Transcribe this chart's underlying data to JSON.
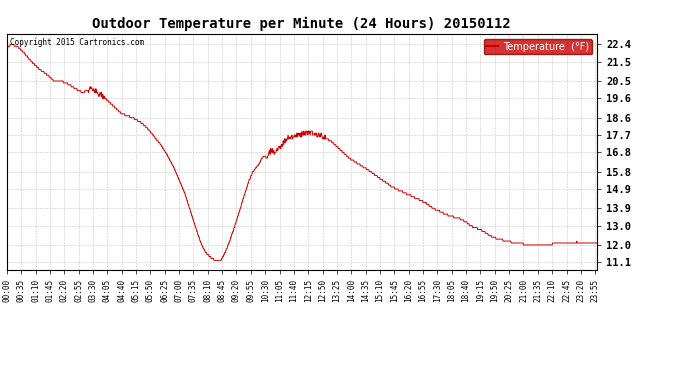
{
  "title": "Outdoor Temperature per Minute (24 Hours) 20150112",
  "copyright_text": "Copyright 2015 Cartronics.com",
  "legend_label": "Temperature  (°F)",
  "line_color": "#cc0000",
  "legend_bg": "#cc0000",
  "legend_text_color": "#ffffff",
  "background_color": "#ffffff",
  "grid_color": "#c0c0c0",
  "yticks": [
    11.1,
    12.0,
    13.0,
    13.9,
    14.9,
    15.8,
    16.8,
    17.7,
    18.6,
    19.6,
    20.5,
    21.5,
    22.4
  ],
  "ylim": [
    10.7,
    22.95
  ],
  "total_minutes": 1440,
  "figsize": [
    6.9,
    3.75
  ],
  "dpi": 100,
  "control_points": [
    [
      0,
      22.2
    ],
    [
      10,
      22.4
    ],
    [
      25,
      22.3
    ],
    [
      40,
      22.0
    ],
    [
      60,
      21.5
    ],
    [
      80,
      21.1
    ],
    [
      100,
      20.8
    ],
    [
      115,
      20.5
    ],
    [
      130,
      20.5
    ],
    [
      145,
      20.4
    ],
    [
      160,
      20.2
    ],
    [
      175,
      20.0
    ],
    [
      185,
      19.9
    ],
    [
      195,
      20.0
    ],
    [
      205,
      20.1
    ],
    [
      215,
      20.0
    ],
    [
      220,
      19.9
    ],
    [
      235,
      19.7
    ],
    [
      250,
      19.4
    ],
    [
      265,
      19.1
    ],
    [
      280,
      18.8
    ],
    [
      295,
      18.7
    ],
    [
      305,
      18.6
    ],
    [
      315,
      18.5
    ],
    [
      330,
      18.3
    ],
    [
      345,
      18.0
    ],
    [
      360,
      17.6
    ],
    [
      375,
      17.2
    ],
    [
      390,
      16.7
    ],
    [
      405,
      16.1
    ],
    [
      420,
      15.4
    ],
    [
      435,
      14.6
    ],
    [
      450,
      13.6
    ],
    [
      465,
      12.6
    ],
    [
      475,
      12.0
    ],
    [
      485,
      11.6
    ],
    [
      500,
      11.3
    ],
    [
      510,
      11.2
    ],
    [
      517,
      11.15
    ],
    [
      522,
      11.2
    ],
    [
      530,
      11.5
    ],
    [
      540,
      12.0
    ],
    [
      553,
      12.8
    ],
    [
      565,
      13.6
    ],
    [
      578,
      14.5
    ],
    [
      590,
      15.3
    ],
    [
      600,
      15.8
    ],
    [
      608,
      16.0
    ],
    [
      615,
      16.2
    ],
    [
      622,
      16.5
    ],
    [
      628,
      16.6
    ],
    [
      635,
      16.5
    ],
    [
      640,
      16.8
    ],
    [
      645,
      16.9
    ],
    [
      655,
      16.8
    ],
    [
      660,
      16.9
    ],
    [
      668,
      17.1
    ],
    [
      675,
      17.3
    ],
    [
      682,
      17.5
    ],
    [
      690,
      17.6
    ],
    [
      700,
      17.65
    ],
    [
      710,
      17.7
    ],
    [
      720,
      17.75
    ],
    [
      730,
      17.8
    ],
    [
      740,
      17.8
    ],
    [
      750,
      17.75
    ],
    [
      760,
      17.7
    ],
    [
      770,
      17.65
    ],
    [
      775,
      17.6
    ],
    [
      780,
      17.5
    ],
    [
      790,
      17.4
    ],
    [
      800,
      17.2
    ],
    [
      810,
      17.0
    ],
    [
      820,
      16.8
    ],
    [
      835,
      16.5
    ],
    [
      850,
      16.3
    ],
    [
      865,
      16.1
    ],
    [
      880,
      15.9
    ],
    [
      900,
      15.6
    ],
    [
      920,
      15.3
    ],
    [
      940,
      15.0
    ],
    [
      960,
      14.8
    ],
    [
      980,
      14.6
    ],
    [
      1000,
      14.4
    ],
    [
      1020,
      14.2
    ],
    [
      1040,
      13.9
    ],
    [
      1060,
      13.7
    ],
    [
      1080,
      13.5
    ],
    [
      1100,
      13.4
    ],
    [
      1110,
      13.3
    ],
    [
      1120,
      13.2
    ],
    [
      1130,
      13.0
    ],
    [
      1140,
      12.9
    ],
    [
      1155,
      12.8
    ],
    [
      1170,
      12.6
    ],
    [
      1185,
      12.4
    ],
    [
      1200,
      12.3
    ],
    [
      1220,
      12.2
    ],
    [
      1240,
      12.1
    ],
    [
      1260,
      12.05
    ],
    [
      1280,
      12.0
    ],
    [
      1300,
      12.0
    ],
    [
      1315,
      12.0
    ],
    [
      1330,
      12.05
    ],
    [
      1350,
      12.1
    ],
    [
      1370,
      12.1
    ],
    [
      1390,
      12.15
    ],
    [
      1410,
      12.1
    ],
    [
      1425,
      12.1
    ],
    [
      1439,
      12.1
    ]
  ]
}
